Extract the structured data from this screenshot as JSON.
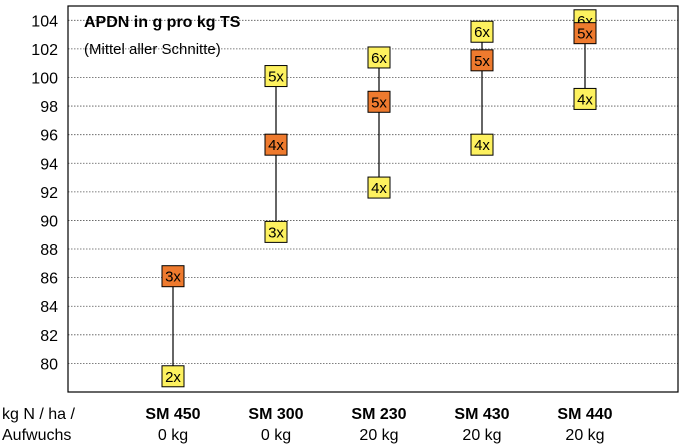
{
  "chart_data": {
    "type": "range-markers",
    "title": "APDN in g pro kg TS",
    "subtitle": "(Mittel aller Schnitte)",
    "x_axis_label": [
      "kg N / ha /",
      "Aufwuchs"
    ],
    "ylim": [
      78,
      105
    ],
    "y_ticks": [
      80,
      82,
      84,
      86,
      88,
      90,
      92,
      94,
      96,
      98,
      100,
      102,
      104
    ],
    "grid": true,
    "colors": {
      "light": "#FDF15F",
      "dark": "#EE7A2E",
      "grid": "#555555",
      "border": "#000000"
    },
    "categories": [
      {
        "name": "SM 450",
        "sub": "0 kg",
        "range": [
          79.1,
          86.1
        ],
        "markers": [
          {
            "label": "3x",
            "value": 86.1,
            "color": "dark"
          },
          {
            "label": "2x",
            "value": 79.1,
            "color": "light"
          }
        ]
      },
      {
        "name": "SM 300",
        "sub": "0 kg",
        "range": [
          89.2,
          100.1
        ],
        "markers": [
          {
            "label": "5x",
            "value": 100.1,
            "color": "light"
          },
          {
            "label": "4x",
            "value": 95.3,
            "color": "dark"
          },
          {
            "label": "3x",
            "value": 89.2,
            "color": "light"
          }
        ]
      },
      {
        "name": "SM 230",
        "sub": "20 kg",
        "range": [
          92.3,
          101.4
        ],
        "markers": [
          {
            "label": "6x",
            "value": 101.4,
            "color": "light"
          },
          {
            "label": "5x",
            "value": 98.3,
            "color": "dark"
          },
          {
            "label": "4x",
            "value": 92.3,
            "color": "light"
          }
        ]
      },
      {
        "name": "SM 430",
        "sub": "20 kg",
        "range": [
          95.3,
          103.2
        ],
        "markers": [
          {
            "label": "6x",
            "value": 103.2,
            "color": "light"
          },
          {
            "label": "5x",
            "value": 101.2,
            "color": "dark"
          },
          {
            "label": "4x",
            "value": 95.3,
            "color": "light"
          }
        ]
      },
      {
        "name": "SM 440",
        "sub": "20 kg",
        "range": [
          98.5,
          104.0
        ],
        "markers": [
          {
            "label": "6x",
            "value": 104.0,
            "color": "light"
          },
          {
            "label": "5x",
            "value": 103.1,
            "color": "dark"
          },
          {
            "label": "4x",
            "value": 98.5,
            "color": "light"
          }
        ]
      }
    ]
  }
}
